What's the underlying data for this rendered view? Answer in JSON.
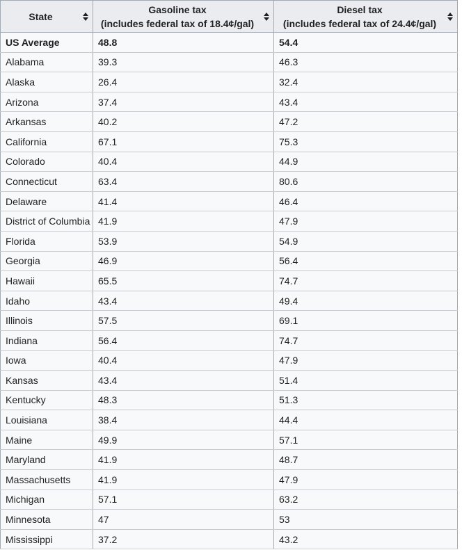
{
  "colors": {
    "header_bg": "#eaecf0",
    "cell_bg": "#f8f9fa",
    "column_border": "#a2a9b1",
    "row_border": "#c8ccd1",
    "text": "#202122",
    "sort_arrow": "#202122"
  },
  "table": {
    "columns": [
      {
        "label": "State",
        "sublabel": "",
        "sort_icon": "sort-both-icon"
      },
      {
        "label": "Gasoline tax",
        "sublabel": "(includes federal tax of 18.4¢/gal)",
        "sort_icon": "sort-both-icon"
      },
      {
        "label": "Diesel tax",
        "sublabel": "(includes federal tax of 24.4¢/gal)",
        "sort_icon": "sort-both-icon"
      }
    ],
    "first_row_is_bold_summary": true
  },
  "chart_data": {
    "type": "table",
    "columns": [
      "State",
      "Gasoline tax (includes federal tax of 18.4¢/gal)",
      "Diesel tax (includes federal tax of 24.4¢/gal)"
    ],
    "rows": [
      [
        "US Average",
        48.8,
        54.4
      ],
      [
        "Alabama",
        39.3,
        46.3
      ],
      [
        "Alaska",
        26.4,
        32.4
      ],
      [
        "Arizona",
        37.4,
        43.4
      ],
      [
        "Arkansas",
        40.2,
        47.2
      ],
      [
        "California",
        67.1,
        75.3
      ],
      [
        "Colorado",
        40.4,
        44.9
      ],
      [
        "Connecticut",
        63.4,
        80.6
      ],
      [
        "Delaware",
        41.4,
        46.4
      ],
      [
        "District of Columbia",
        41.9,
        47.9
      ],
      [
        "Florida",
        53.9,
        54.9
      ],
      [
        "Georgia",
        46.9,
        56.4
      ],
      [
        "Hawaii",
        65.5,
        74.7
      ],
      [
        "Idaho",
        43.4,
        49.4
      ],
      [
        "Illinois",
        57.5,
        69.1
      ],
      [
        "Indiana",
        56.4,
        74.7
      ],
      [
        "Iowa",
        40.4,
        47.9
      ],
      [
        "Kansas",
        43.4,
        51.4
      ],
      [
        "Kentucky",
        48.3,
        51.3
      ],
      [
        "Louisiana",
        38.4,
        44.4
      ],
      [
        "Maine",
        49.9,
        57.1
      ],
      [
        "Maryland",
        41.9,
        48.7
      ],
      [
        "Massachusetts",
        41.9,
        47.9
      ],
      [
        "Michigan",
        57.1,
        63.2
      ],
      [
        "Minnesota",
        47,
        53
      ],
      [
        "Mississippi",
        37.2,
        43.2
      ]
    ]
  }
}
